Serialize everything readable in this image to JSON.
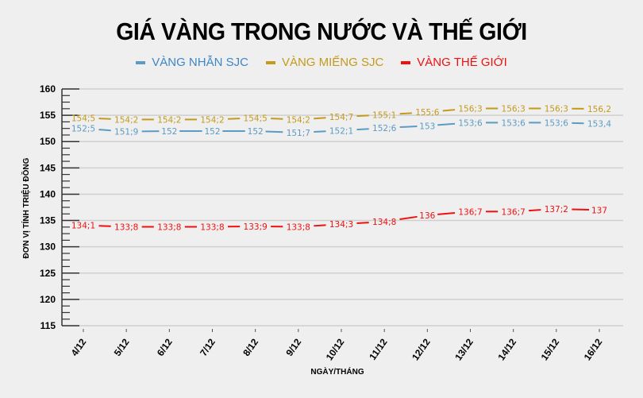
{
  "title": "GIÁ VÀNG TRONG NƯỚC VÀ THẾ GIỚI",
  "legend": [
    {
      "label": "VÀNG NHẪN SJC",
      "color": "#5b9bc4",
      "text_color": "#3f86c6"
    },
    {
      "label": "VÀNG MIẾNG SJC",
      "color": "#c49a1b",
      "text_color": "#c49a1b"
    },
    {
      "label": "VÀNG THẾ GIỚI",
      "color": "#f01010",
      "text_color": "#f01010"
    }
  ],
  "chart_data": {
    "type": "line",
    "title": "GIÁ VÀNG TRONG NƯỚC VÀ THẾ GIỚI",
    "xlabel": "NGÀY/THÁNG",
    "ylabel": "ĐƠN VỊ TÍNH TRIỆU ĐỒNG",
    "ylim": [
      115,
      160
    ],
    "yticks": [
      115,
      120,
      125,
      130,
      135,
      140,
      145,
      150,
      155,
      160
    ],
    "grid": true,
    "legend_position": "top",
    "categories": [
      "4/12",
      "5/12",
      "6/12",
      "7/12",
      "8/12",
      "9/12",
      "10/12",
      "11/12",
      "12/12",
      "13/12",
      "14/12",
      "15/12",
      "16/12"
    ],
    "series": [
      {
        "name": "VÀNG NHẪN SJC",
        "color": "#5b9bc4",
        "values": [
          152.5,
          151.9,
          152,
          152,
          152,
          151.7,
          152.1,
          152.6,
          153,
          153.6,
          153.6,
          153.6,
          153.4
        ],
        "labels": [
          "152;5",
          "151;9",
          "152",
          "152",
          "152",
          "151;7",
          "152;1",
          "152;6",
          "153",
          "153;6",
          "153;6",
          "153;6",
          "153,4"
        ]
      },
      {
        "name": "VÀNG MIẾNG SJC",
        "color": "#c49a1b",
        "values": [
          154.5,
          154.2,
          154.2,
          154.2,
          154.5,
          154.2,
          154.7,
          155.1,
          155.6,
          156.3,
          156.3,
          156.3,
          156.2
        ],
        "labels": [
          "154;5",
          "154;2",
          "154;2",
          "154;2",
          "154;5",
          "154;2",
          "154;7",
          "155;1",
          "155;6",
          "156;3",
          "156;3",
          "156;3",
          "156,2"
        ]
      },
      {
        "name": "VÀNG THẾ GIỚI",
        "color": "#f01010",
        "values": [
          134.1,
          133.8,
          133.8,
          133.8,
          133.9,
          133.8,
          134.3,
          134.8,
          136,
          136.7,
          136.7,
          137.2,
          137
        ],
        "labels": [
          "134;1",
          "133;8",
          "133;8",
          "133;8",
          "133;9",
          "133;8",
          "134;3",
          "134;8",
          "136",
          "136;7",
          "136;7",
          "137;2",
          "137"
        ]
      }
    ]
  }
}
